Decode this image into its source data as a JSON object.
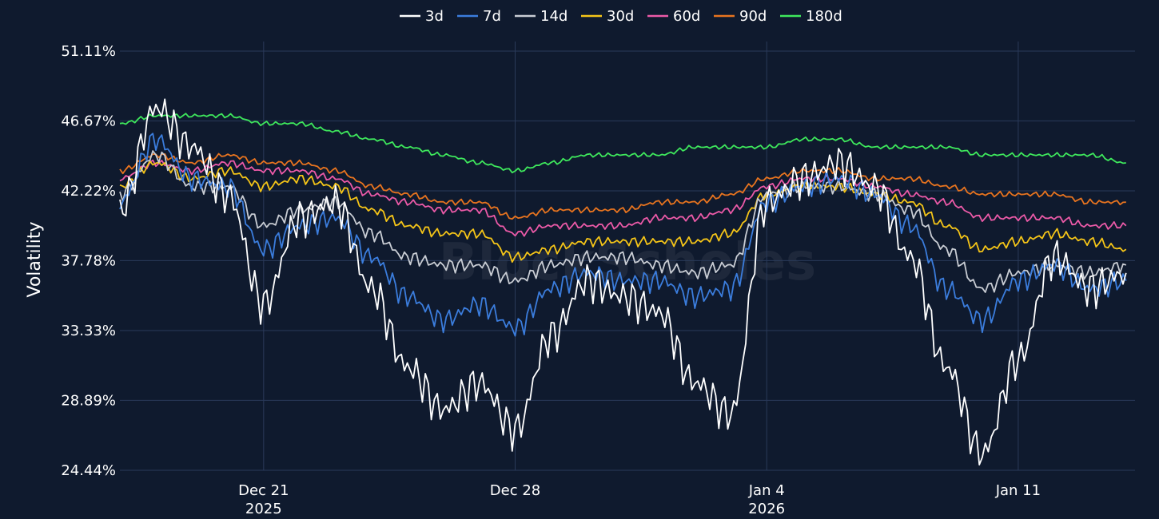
{
  "chart_data": {
    "type": "line",
    "title": "",
    "xlabel": "",
    "ylabel": "Volatility",
    "ylim": [
      24.44,
      51.11
    ],
    "y_ticks": [
      "24.44%",
      "28.89%",
      "33.33%",
      "37.78%",
      "42.22%",
      "46.67%",
      "51.11%"
    ],
    "y_tick_values": [
      24.44,
      28.89,
      33.33,
      37.78,
      42.22,
      46.67,
      51.11
    ],
    "x_range": [
      "2025-12-17",
      "2026-01-14T06:00"
    ],
    "x_ticks": [
      {
        "date": "2025-12-21",
        "label": "Dec 21",
        "year": "2025"
      },
      {
        "date": "2025-12-28",
        "label": "Dec 28",
        "year": ""
      },
      {
        "date": "2026-01-04",
        "label": "Jan 4",
        "year": "2026"
      },
      {
        "date": "2026-01-11",
        "label": "Jan 11",
        "year": ""
      }
    ],
    "grid": true,
    "legend_position": "top-center",
    "watermark": "BlockScholes",
    "x": [
      "2025-12-17",
      "2025-12-18",
      "2025-12-19",
      "2025-12-20",
      "2025-12-21",
      "2025-12-22",
      "2025-12-23",
      "2025-12-24",
      "2025-12-25",
      "2025-12-26",
      "2025-12-27",
      "2025-12-28",
      "2025-12-29",
      "2025-12-30",
      "2025-12-31",
      "2026-01-01",
      "2026-01-02",
      "2026-01-03",
      "2026-01-04",
      "2026-01-05",
      "2026-01-06",
      "2026-01-07",
      "2026-01-08",
      "2026-01-09",
      "2026-01-10",
      "2026-01-11",
      "2026-01-12",
      "2026-01-13",
      "2026-01-14"
    ],
    "series": [
      {
        "name": "3d",
        "color": "#ffffff",
        "values": [
          41.0,
          47.5,
          45.0,
          42.0,
          35.0,
          40.5,
          41.5,
          36.0,
          31.0,
          28.3,
          30.0,
          27.0,
          33.0,
          36.5,
          35.5,
          34.5,
          30.0,
          28.0,
          41.5,
          43.0,
          44.0,
          42.5,
          38.0,
          31.0,
          25.5,
          31.5,
          38.0,
          36.0,
          37.0
        ]
      },
      {
        "name": "7d",
        "color": "#3b7ddd",
        "values": [
          41.5,
          45.5,
          43.0,
          42.5,
          38.5,
          40.0,
          40.5,
          38.0,
          35.5,
          34.0,
          35.0,
          33.5,
          36.0,
          37.0,
          36.5,
          36.5,
          35.5,
          36.0,
          41.5,
          42.5,
          43.0,
          42.0,
          40.0,
          36.0,
          34.0,
          36.5,
          37.5,
          36.0,
          36.5
        ]
      },
      {
        "name": "14d",
        "color": "#c9cdd4",
        "values": [
          42.0,
          44.5,
          42.5,
          42.5,
          40.0,
          41.0,
          41.5,
          39.5,
          38.0,
          37.5,
          37.5,
          36.5,
          37.5,
          38.0,
          38.0,
          37.5,
          37.0,
          37.5,
          42.0,
          42.5,
          42.5,
          42.0,
          41.0,
          38.5,
          36.0,
          37.0,
          37.5,
          37.0,
          37.5
        ]
      },
      {
        "name": "30d",
        "color": "#f5c518",
        "values": [
          42.5,
          44.0,
          43.0,
          43.5,
          42.5,
          43.0,
          42.5,
          41.0,
          40.0,
          39.5,
          39.5,
          38.0,
          38.5,
          39.0,
          39.0,
          39.0,
          39.0,
          39.5,
          42.0,
          42.5,
          42.5,
          42.0,
          41.5,
          40.0,
          38.5,
          39.0,
          39.5,
          39.0,
          38.5
        ]
      },
      {
        "name": "60d",
        "color": "#ec5aa8",
        "values": [
          43.0,
          44.0,
          43.5,
          44.0,
          43.5,
          43.5,
          43.0,
          42.0,
          41.5,
          41.0,
          41.0,
          39.5,
          40.0,
          40.0,
          40.0,
          40.5,
          40.5,
          41.0,
          42.5,
          43.0,
          43.0,
          42.5,
          42.0,
          41.5,
          40.5,
          40.5,
          40.5,
          40.0,
          40.0
        ]
      },
      {
        "name": "90d",
        "color": "#e8741f",
        "values": [
          43.5,
          44.5,
          44.0,
          44.5,
          44.0,
          44.0,
          43.5,
          42.5,
          42.0,
          41.5,
          41.5,
          40.5,
          41.0,
          41.0,
          41.0,
          41.5,
          41.5,
          42.0,
          43.0,
          43.5,
          43.5,
          43.0,
          43.0,
          42.5,
          42.0,
          42.0,
          42.0,
          41.5,
          41.5
        ]
      },
      {
        "name": "180d",
        "color": "#3ee85c",
        "values": [
          46.5,
          47.0,
          47.0,
          47.0,
          46.5,
          46.5,
          46.0,
          45.5,
          45.0,
          44.5,
          44.0,
          43.5,
          44.0,
          44.5,
          44.5,
          44.5,
          45.0,
          45.0,
          45.0,
          45.5,
          45.5,
          45.0,
          45.0,
          45.0,
          44.5,
          44.5,
          44.5,
          44.5,
          44.0
        ]
      }
    ]
  }
}
